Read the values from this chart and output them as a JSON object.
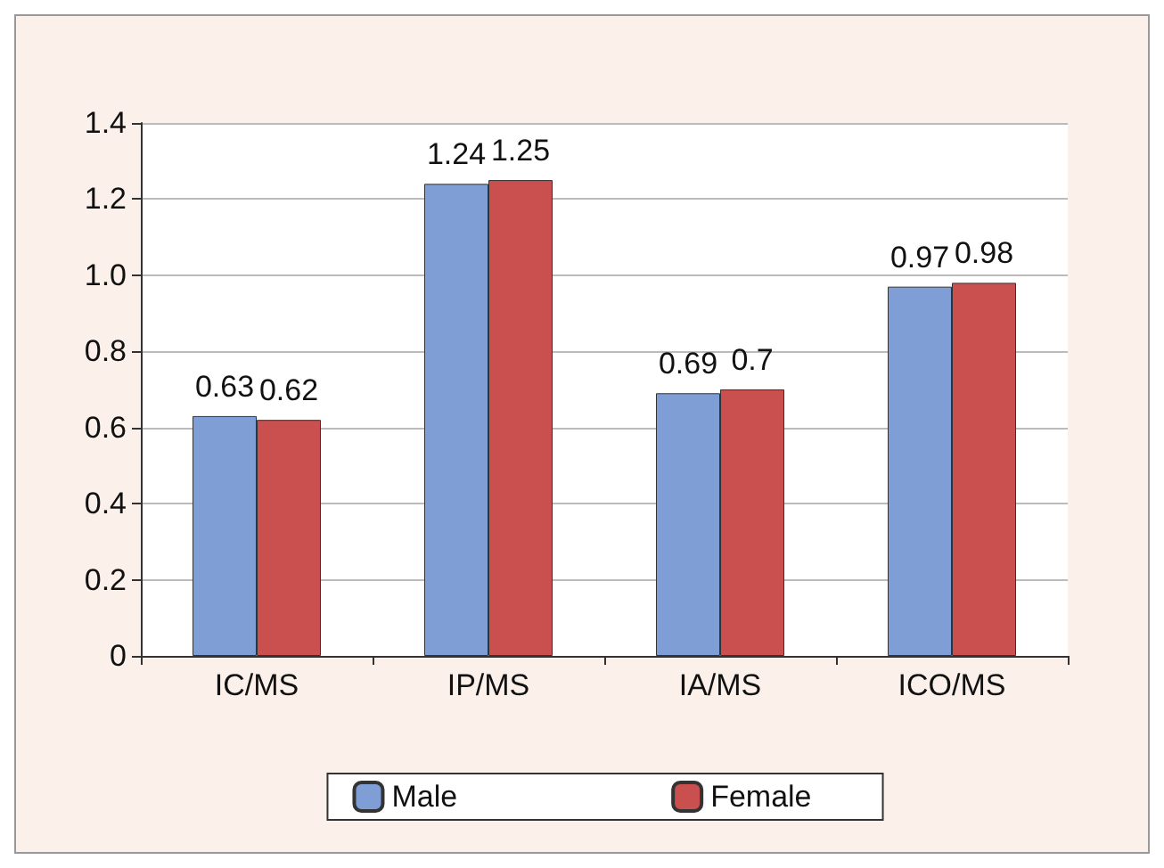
{
  "chart_data": {
    "type": "bar",
    "categories": [
      "IC/MS",
      "IP/MS",
      "IA/MS",
      "ICO/MS"
    ],
    "series": [
      {
        "name": "Male",
        "color": "#7f9ed6",
        "values": [
          0.63,
          1.24,
          0.69,
          0.97
        ]
      },
      {
        "name": "Female",
        "color": "#c9504f",
        "values": [
          0.62,
          1.25,
          0.7,
          0.98
        ]
      }
    ],
    "ylim": [
      0,
      1.4
    ],
    "yticks": [
      0,
      0.2,
      0.4,
      0.6,
      0.8,
      {
        "value": 1,
        "label": "1.0"
      },
      1.2,
      1.4
    ],
    "grid": "y",
    "legend": "bottom",
    "data_labels": true
  }
}
